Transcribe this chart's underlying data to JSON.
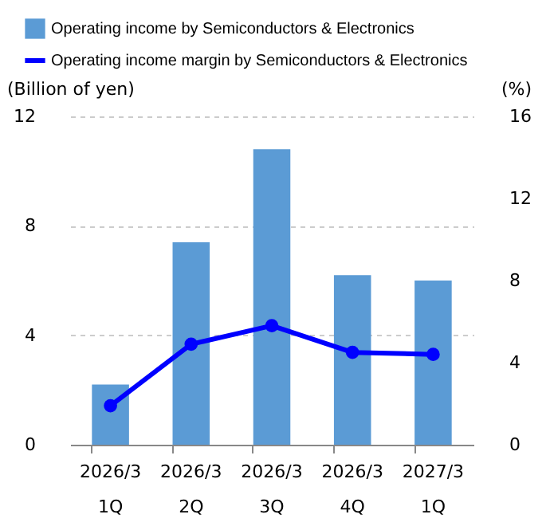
{
  "chart_data": {
    "type": "bar",
    "categories": [
      "2026/3\n1Q",
      "2026/3\n2Q",
      "2026/3\n3Q",
      "2026/3\n4Q",
      "2027/3\n1Q"
    ],
    "series": [
      {
        "name": "Operating income by Semiconductors & Electronics",
        "color": "#5b9bd5",
        "values": [
          2.2,
          7.4,
          10.8,
          6.2,
          6.0
        ]
      },
      {
        "name": "Operating income margin by Semiconductors & Electronics",
        "type": "line",
        "axis": "y2",
        "color": "#0000ff",
        "values": [
          1.9,
          4.9,
          5.8,
          4.5,
          4.4
        ]
      }
    ],
    "ylabel": "(Billion of yen)",
    "y2label": "(%)",
    "ylim": [
      0,
      12
    ],
    "yticks": [
      0,
      4,
      8,
      12
    ],
    "y2lim": [
      0,
      16
    ],
    "y2ticks": [
      0,
      4,
      8,
      12,
      16
    ],
    "grid": "y",
    "legend": "top left",
    "marker": "circle",
    "line_style": "solid"
  }
}
